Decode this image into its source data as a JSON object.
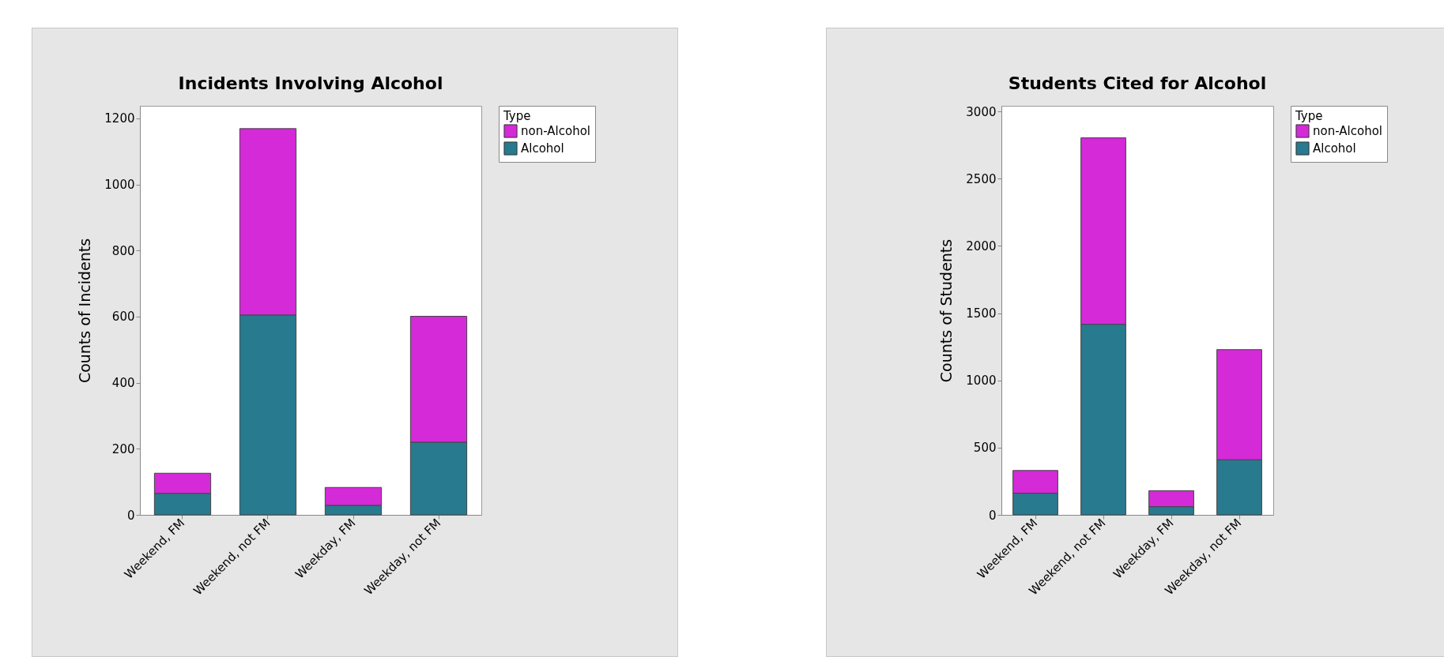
{
  "chart_data": [
    {
      "type": "bar",
      "title": "Incidents Involving Alcohol",
      "ylabel": "Counts of Incidents",
      "legend_title": "Type",
      "legend": "top right",
      "stacked": true,
      "grid": false,
      "categories": [
        "Weekend, FM",
        "Weekend, not FM",
        "Weekday, FM",
        "Weekday, not FM"
      ],
      "series": [
        {
          "name": "Alcohol",
          "color": "#287a8f",
          "values": [
            65,
            605,
            29,
            220
          ]
        },
        {
          "name": "non-Alcohol",
          "color": "#d42ad8",
          "values": [
            61,
            564,
            54,
            381
          ]
        }
      ],
      "ylim": [
        0,
        1238
      ],
      "yticks": [
        0,
        200,
        400,
        600,
        800,
        1000,
        1200
      ]
    },
    {
      "type": "bar",
      "title": "Students Cited for Alcohol",
      "ylabel": "Counts of Students",
      "legend_title": "Type",
      "legend": "top right",
      "stacked": true,
      "grid": false,
      "categories": [
        "Weekend, FM",
        "Weekend, not FM",
        "Weekday, FM",
        "Weekday, not FM"
      ],
      "series": [
        {
          "name": "Alcohol",
          "color": "#287a8f",
          "values": [
            161,
            1417,
            61,
            410
          ]
        },
        {
          "name": "non-Alcohol",
          "color": "#d42ad8",
          "values": [
            169,
            1387,
            119,
            819
          ]
        }
      ],
      "ylim": [
        0,
        3042
      ],
      "yticks": [
        0,
        500,
        1000,
        1500,
        2000,
        2500,
        3000
      ]
    }
  ]
}
